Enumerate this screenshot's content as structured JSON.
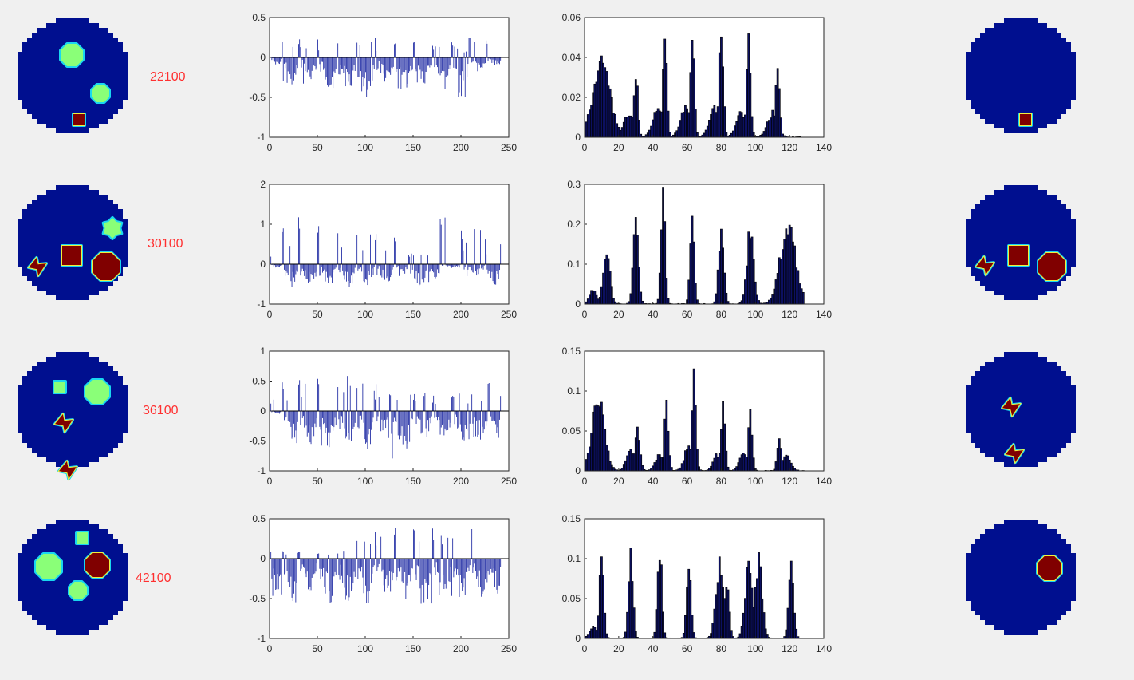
{
  "colors": {
    "background": "#f0f0f0",
    "disk": "#000f8f",
    "green_blob": "#8aff78",
    "red_blob": "#800000",
    "cyan_edge": "#19d7f0",
    "yellow_edge": "#f0f040",
    "signal_bar": "#2a35a8",
    "spectrum_bar": "#0c1060",
    "row_label": "#ff3030"
  },
  "rows": [
    {
      "label": "22100"
    },
    {
      "label": "30100"
    },
    {
      "label": "36100"
    },
    {
      "label": "42100"
    }
  ],
  "chart_data": [
    {
      "type": "bar",
      "id": "signal-1",
      "xlim": [
        0,
        250
      ],
      "ylim": [
        -1,
        0.5
      ],
      "xticks": [
        "0",
        "50",
        "100",
        "150",
        "200",
        "250"
      ],
      "yticks": [
        "-1",
        "-0.5",
        "0",
        "0.5"
      ],
      "envelope": [
        {
          "x": [
            0,
            13
          ],
          "peak": 0.0,
          "trough": -0.1
        },
        {
          "x": [
            13,
            30
          ],
          "peak": 0.3,
          "trough": -0.35
        },
        {
          "x": [
            30,
            50
          ],
          "peak": 0.25,
          "trough": -0.35
        },
        {
          "x": [
            50,
            70
          ],
          "peak": 0.25,
          "trough": -0.4
        },
        {
          "x": [
            70,
            90
          ],
          "peak": 0.25,
          "trough": -0.45
        },
        {
          "x": [
            90,
            110
          ],
          "peak": 0.2,
          "trough": -0.5
        },
        {
          "x": [
            110,
            130
          ],
          "peak": 0.25,
          "trough": -0.4
        },
        {
          "x": [
            130,
            150
          ],
          "peak": 0.2,
          "trough": -0.4
        },
        {
          "x": [
            150,
            170
          ],
          "peak": 0.2,
          "trough": -0.35
        },
        {
          "x": [
            170,
            190
          ],
          "peak": 0.15,
          "trough": -0.4
        },
        {
          "x": [
            190,
            208
          ],
          "peak": 0.2,
          "trough": -0.5
        },
        {
          "x": [
            208,
            226
          ],
          "peak": 0.32,
          "trough": -0.2
        },
        {
          "x": [
            226,
            242
          ],
          "peak": 0.28,
          "trough": -0.1
        }
      ]
    },
    {
      "type": "bar",
      "id": "spectrum-1",
      "xlim": [
        0,
        140
      ],
      "ylim": [
        0,
        0.06
      ],
      "xticks": [
        "0",
        "20",
        "40",
        "60",
        "80",
        "100",
        "120",
        "140"
      ],
      "yticks": [
        "0",
        "0.02",
        "0.04",
        "0.06"
      ],
      "peaks": [
        {
          "x": 10,
          "y": 0.036,
          "w": 5
        },
        {
          "x": 30,
          "y": 0.032,
          "w": 1.2
        },
        {
          "x": 26,
          "y": 0.012,
          "w": 3
        },
        {
          "x": 47,
          "y": 0.048,
          "w": 1.2
        },
        {
          "x": 43,
          "y": 0.014,
          "w": 3
        },
        {
          "x": 63,
          "y": 0.054,
          "w": 1.2
        },
        {
          "x": 59,
          "y": 0.014,
          "w": 3
        },
        {
          "x": 80,
          "y": 0.054,
          "w": 1.2
        },
        {
          "x": 76,
          "y": 0.014,
          "w": 3
        },
        {
          "x": 96,
          "y": 0.046,
          "w": 1.2
        },
        {
          "x": 92,
          "y": 0.012,
          "w": 3
        },
        {
          "x": 113,
          "y": 0.034,
          "w": 1.2
        },
        {
          "x": 110,
          "y": 0.012,
          "w": 3
        }
      ]
    },
    {
      "type": "bar",
      "id": "signal-2",
      "xlim": [
        0,
        250
      ],
      "ylim": [
        -1,
        2
      ],
      "xticks": [
        "0",
        "50",
        "100",
        "150",
        "200",
        "250"
      ],
      "yticks": [
        "-1",
        "0",
        "1",
        "2"
      ],
      "envelope": [
        {
          "x": [
            0,
            13
          ],
          "peak": 0.2,
          "trough": -0.1
        },
        {
          "x": [
            13,
            30
          ],
          "peak": 1.0,
          "trough": -0.6
        },
        {
          "x": [
            30,
            50
          ],
          "peak": 1.35,
          "trough": -0.6
        },
        {
          "x": [
            50,
            70
          ],
          "peak": 1.0,
          "trough": -0.6
        },
        {
          "x": [
            70,
            90
          ],
          "peak": 1.0,
          "trough": -0.6
        },
        {
          "x": [
            90,
            110
          ],
          "peak": 1.05,
          "trough": -0.55
        },
        {
          "x": [
            110,
            130
          ],
          "peak": 1.0,
          "trough": -0.55
        },
        {
          "x": [
            130,
            145
          ],
          "peak": 0.8,
          "trough": -0.3
        },
        {
          "x": [
            145,
            165
          ],
          "peak": 0.3,
          "trough": -0.7
        },
        {
          "x": [
            165,
            178
          ],
          "peak": 0.3,
          "trough": -0.5
        },
        {
          "x": [
            178,
            200
          ],
          "peak": 1.35,
          "trough": -0.1
        },
        {
          "x": [
            200,
            225
          ],
          "peak": 0.9,
          "trough": -0.3
        },
        {
          "x": [
            225,
            242
          ],
          "peak": 0.8,
          "trough": -0.55
        }
      ]
    },
    {
      "type": "bar",
      "id": "spectrum-2",
      "xlim": [
        0,
        140
      ],
      "ylim": [
        0,
        0.3
      ],
      "xticks": [
        "0",
        "20",
        "40",
        "60",
        "80",
        "100",
        "120",
        "140"
      ],
      "yticks": [
        "0",
        "0.1",
        "0.2",
        "0.3"
      ],
      "peaks": [
        {
          "x": 13,
          "y": 0.12,
          "w": 2
        },
        {
          "x": 30,
          "y": 0.22,
          "w": 1.5
        },
        {
          "x": 46,
          "y": 0.27,
          "w": 1.2
        },
        {
          "x": 63,
          "y": 0.21,
          "w": 1.2
        },
        {
          "x": 80,
          "y": 0.18,
          "w": 1.5
        },
        {
          "x": 97,
          "y": 0.18,
          "w": 2
        },
        {
          "x": 119,
          "y": 0.19,
          "w": 4.5
        },
        {
          "x": 5,
          "y": 0.035,
          "w": 2
        }
      ]
    },
    {
      "type": "bar",
      "id": "signal-3",
      "xlim": [
        0,
        250
      ],
      "ylim": [
        -1,
        1
      ],
      "xticks": [
        "0",
        "50",
        "100",
        "150",
        "200",
        "250"
      ],
      "yticks": [
        "-1",
        "-0.5",
        "0",
        "0.5",
        "1"
      ],
      "envelope": [
        {
          "x": [
            0,
            13
          ],
          "peak": 0.2,
          "trough": -0.05
        },
        {
          "x": [
            13,
            30
          ],
          "peak": 0.5,
          "trough": -0.55
        },
        {
          "x": [
            30,
            50
          ],
          "peak": 0.55,
          "trough": -0.6
        },
        {
          "x": [
            50,
            70
          ],
          "peak": 0.55,
          "trough": -0.65
        },
        {
          "x": [
            70,
            90
          ],
          "peak": 0.6,
          "trough": -0.6
        },
        {
          "x": [
            90,
            110
          ],
          "peak": 0.55,
          "trough": -0.65
        },
        {
          "x": [
            110,
            125
          ],
          "peak": 0.5,
          "trough": -0.5
        },
        {
          "x": [
            125,
            150
          ],
          "peak": 0.3,
          "trough": -0.8
        },
        {
          "x": [
            150,
            170
          ],
          "peak": 0.3,
          "trough": -0.5
        },
        {
          "x": [
            170,
            190
          ],
          "peak": 0.35,
          "trough": -0.55
        },
        {
          "x": [
            190,
            210
          ],
          "peak": 0.3,
          "trough": -0.55
        },
        {
          "x": [
            210,
            228
          ],
          "peak": 0.3,
          "trough": -0.5
        },
        {
          "x": [
            228,
            242
          ],
          "peak": 0.6,
          "trough": -0.45
        }
      ]
    },
    {
      "type": "bar",
      "id": "spectrum-3",
      "xlim": [
        0,
        140
      ],
      "ylim": [
        0,
        0.15
      ],
      "xticks": [
        "0",
        "20",
        "40",
        "60",
        "80",
        "100",
        "120",
        "140"
      ],
      "yticks": [
        "0",
        "0.05",
        "0.1",
        "0.15"
      ],
      "peaks": [
        {
          "x": 8,
          "y": 0.093,
          "w": 3.5
        },
        {
          "x": 31,
          "y": 0.048,
          "w": 1.5
        },
        {
          "x": 27,
          "y": 0.025,
          "w": 2.5
        },
        {
          "x": 48,
          "y": 0.08,
          "w": 1.2
        },
        {
          "x": 44,
          "y": 0.02,
          "w": 2.5
        },
        {
          "x": 64,
          "y": 0.12,
          "w": 1.2
        },
        {
          "x": 61,
          "y": 0.03,
          "w": 2.5
        },
        {
          "x": 81,
          "y": 0.085,
          "w": 1.2
        },
        {
          "x": 78,
          "y": 0.02,
          "w": 2.5
        },
        {
          "x": 97,
          "y": 0.068,
          "w": 1.2
        },
        {
          "x": 93,
          "y": 0.02,
          "w": 2.5
        },
        {
          "x": 114,
          "y": 0.043,
          "w": 1.2
        },
        {
          "x": 118,
          "y": 0.02,
          "w": 2.5
        }
      ]
    },
    {
      "type": "bar",
      "id": "signal-4",
      "xlim": [
        0,
        250
      ],
      "ylim": [
        -1,
        0.5
      ],
      "xticks": [
        "0",
        "50",
        "100",
        "150",
        "200",
        "250"
      ],
      "yticks": [
        "-1",
        "-0.5",
        "0",
        "0.5"
      ],
      "envelope": [
        {
          "x": [
            0,
            13
          ],
          "peak": 0.1,
          "trough": -0.5
        },
        {
          "x": [
            13,
            30
          ],
          "peak": 0.1,
          "trough": -0.55
        },
        {
          "x": [
            30,
            50
          ],
          "peak": 0.1,
          "trough": -0.5
        },
        {
          "x": [
            50,
            70
          ],
          "peak": 0.1,
          "trough": -0.6
        },
        {
          "x": [
            70,
            90
          ],
          "peak": 0.1,
          "trough": -0.6
        },
        {
          "x": [
            90,
            110
          ],
          "peak": 0.3,
          "trough": -0.6
        },
        {
          "x": [
            110,
            130
          ],
          "peak": 0.4,
          "trough": -0.55
        },
        {
          "x": [
            130,
            150
          ],
          "peak": 0.42,
          "trough": -0.55
        },
        {
          "x": [
            150,
            170
          ],
          "peak": 0.42,
          "trough": -0.6
        },
        {
          "x": [
            170,
            190
          ],
          "peak": 0.38,
          "trough": -0.55
        },
        {
          "x": [
            190,
            210
          ],
          "peak": 0.4,
          "trough": -0.55
        },
        {
          "x": [
            210,
            230
          ],
          "peak": 0.4,
          "trough": -0.55
        },
        {
          "x": [
            230,
            242
          ],
          "peak": 0.1,
          "trough": -0.5
        }
      ]
    },
    {
      "type": "bar",
      "id": "spectrum-4",
      "xlim": [
        0,
        140
      ],
      "ylim": [
        0,
        0.15
      ],
      "xticks": [
        "0",
        "20",
        "40",
        "60",
        "80",
        "100",
        "120",
        "140"
      ],
      "yticks": [
        "0",
        "0.05",
        "0.1",
        "0.15"
      ],
      "peaks": [
        {
          "x": 10,
          "y": 0.096,
          "w": 1.3
        },
        {
          "x": 27,
          "y": 0.11,
          "w": 1.3
        },
        {
          "x": 44,
          "y": 0.113,
          "w": 1.3
        },
        {
          "x": 61,
          "y": 0.093,
          "w": 1.3
        },
        {
          "x": 79,
          "y": 0.09,
          "w": 2.2
        },
        {
          "x": 83,
          "y": 0.07,
          "w": 1.5
        },
        {
          "x": 96,
          "y": 0.086,
          "w": 2.2
        },
        {
          "x": 102,
          "y": 0.096,
          "w": 2
        },
        {
          "x": 121,
          "y": 0.085,
          "w": 1.5
        },
        {
          "x": 5,
          "y": 0.015,
          "w": 2
        }
      ]
    }
  ]
}
